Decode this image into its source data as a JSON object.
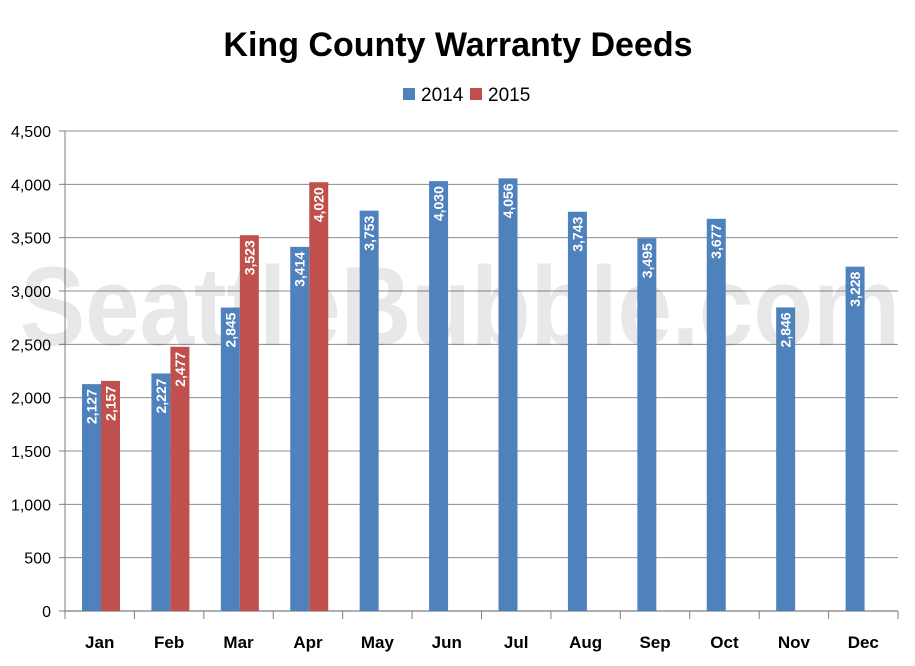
{
  "watermark": "SeattleBubble.com",
  "chart_data": {
    "type": "bar",
    "title": "King County Warranty Deeds",
    "categories": [
      "Jan",
      "Feb",
      "Mar",
      "Apr",
      "May",
      "Jun",
      "Jul",
      "Aug",
      "Sep",
      "Oct",
      "Nov",
      "Dec"
    ],
    "series": [
      {
        "name": "2014",
        "color": "#4f81bd",
        "values": [
          2127,
          2227,
          2845,
          3414,
          3753,
          4030,
          4056,
          3743,
          3495,
          3677,
          2846,
          3228
        ]
      },
      {
        "name": "2015",
        "color": "#c0504d",
        "values": [
          2157,
          2477,
          3523,
          4020,
          null,
          null,
          null,
          null,
          null,
          null,
          null,
          null
        ]
      }
    ],
    "yticks": [
      "0",
      "500",
      "1,000",
      "1,500",
      "2,000",
      "2,500",
      "3,000",
      "3,500",
      "4,000",
      "4,500"
    ],
    "ylim": [
      0,
      4500
    ],
    "grid": true,
    "legend": "top-center"
  }
}
